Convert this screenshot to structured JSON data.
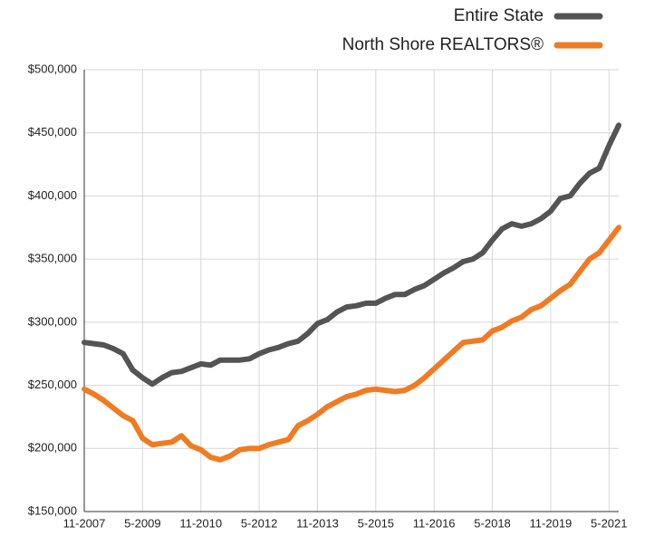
{
  "chart_data": {
    "type": "line",
    "categories": [
      "11-2007",
      null,
      null,
      null,
      null,
      null,
      "5-2009",
      null,
      null,
      null,
      null,
      null,
      "11-2010",
      null,
      null,
      null,
      null,
      null,
      "5-2012",
      null,
      null,
      null,
      null,
      null,
      "11-2013",
      null,
      null,
      null,
      null,
      null,
      "5-2015",
      null,
      null,
      null,
      null,
      null,
      "11-2016",
      null,
      null,
      null,
      null,
      null,
      "5-2018",
      null,
      null,
      null,
      null,
      null,
      "11-2019",
      null,
      null,
      null,
      null,
      null,
      "5-2021",
      null
    ],
    "series": [
      {
        "name": "Entire State",
        "color": "#545454",
        "values": [
          284000,
          283000,
          282000,
          279000,
          275000,
          262000,
          256000,
          251000,
          256000,
          260000,
          261000,
          264000,
          267000,
          266000,
          270000,
          270000,
          270000,
          271000,
          275000,
          278000,
          280000,
          283000,
          285000,
          291000,
          299000,
          302000,
          308000,
          312000,
          313000,
          315000,
          315000,
          319000,
          322000,
          322000,
          326000,
          329000,
          334000,
          339000,
          343000,
          348000,
          350000,
          355000,
          365000,
          374000,
          378000,
          376000,
          378000,
          382000,
          388000,
          398000,
          400000,
          410000,
          418000,
          422000,
          440000,
          456000
        ]
      },
      {
        "name": "North Shore REALTORS®",
        "color": "#f07b22",
        "values": [
          247000,
          243000,
          238000,
          232000,
          226000,
          222000,
          208000,
          203000,
          204000,
          205000,
          210000,
          202000,
          199000,
          193000,
          191000,
          194000,
          199000,
          200000,
          200000,
          203000,
          205000,
          207000,
          218000,
          222000,
          227000,
          233000,
          237000,
          241000,
          243000,
          246000,
          247000,
          246000,
          245000,
          246000,
          250000,
          256000,
          263000,
          270000,
          277000,
          284000,
          285000,
          286000,
          293000,
          296000,
          301000,
          304000,
          310000,
          313000,
          319000,
          325000,
          330000,
          340000,
          350000,
          355000,
          365000,
          375000
        ]
      }
    ],
    "ylim": [
      150000,
      500000
    ],
    "yticks": [
      {
        "value": 150000,
        "label": "$150,000"
      },
      {
        "value": 200000,
        "label": "$200,000"
      },
      {
        "value": 250000,
        "label": "$250,000"
      },
      {
        "value": 300000,
        "label": "$300,000"
      },
      {
        "value": 350000,
        "label": "$350,000"
      },
      {
        "value": 400000,
        "label": "$400,000"
      },
      {
        "value": 450000,
        "label": "$450,000"
      },
      {
        "value": 500000,
        "label": "$500,000"
      }
    ],
    "grid": true,
    "legend": "top-right"
  }
}
